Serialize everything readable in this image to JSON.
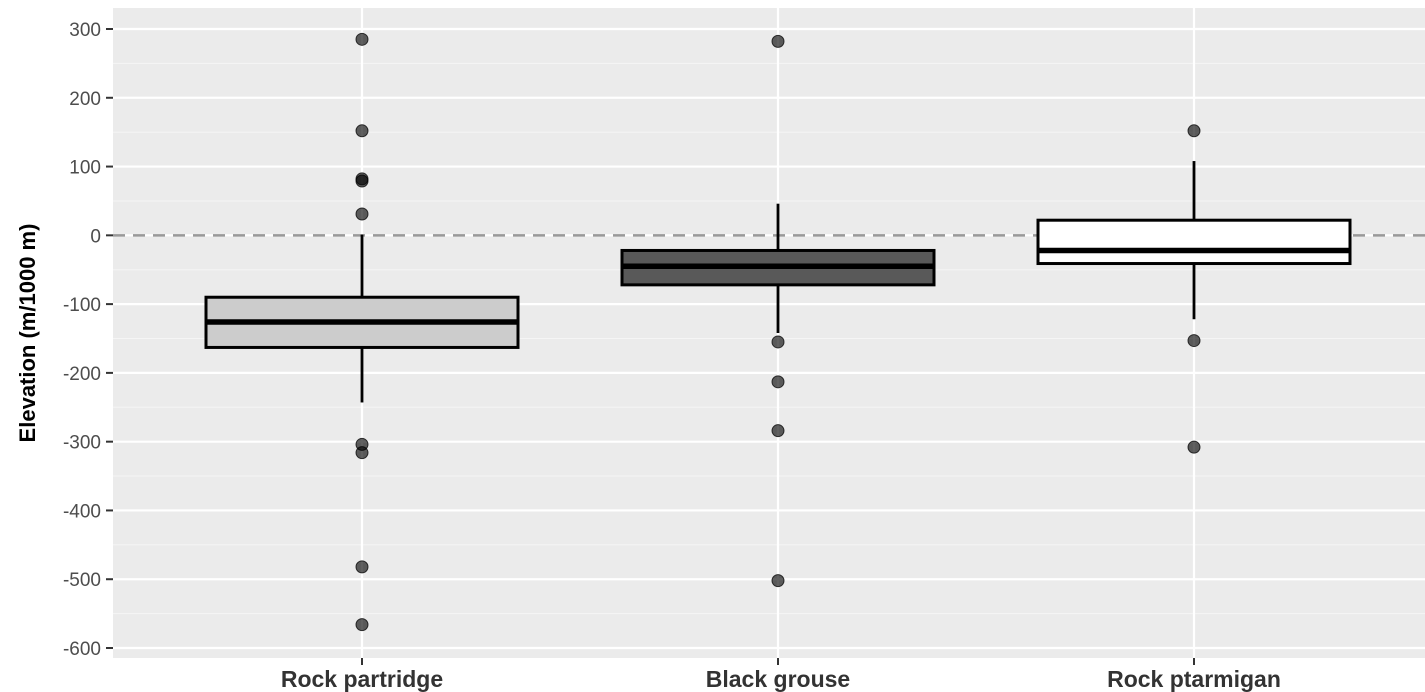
{
  "chart_data": {
    "type": "boxplot",
    "ylabel": "Elevation (m/1000 m)",
    "xlabel": "",
    "ylim": [
      -600,
      300
    ],
    "yticks": [
      300,
      200,
      100,
      0,
      -100,
      -200,
      -300,
      -400,
      -500,
      -600
    ],
    "ytick_labels": [
      "300",
      "200",
      "100",
      "0",
      "-100",
      "-200",
      "-300",
      "-400",
      "-500",
      "-600"
    ],
    "reference_line": {
      "y": 0,
      "style": "dashed",
      "color": "#999999"
    },
    "grid": true,
    "panel_background": "#ebebeb",
    "categories": [
      "Rock partridge",
      "Black grouse",
      "Rock ptarmigan"
    ],
    "boxes": [
      {
        "category": "Rock partridge",
        "fill": "#cccccc",
        "whisker_low": -243,
        "q1": -163,
        "median": -126,
        "q3": -90,
        "whisker_high": 1,
        "outliers": [
          285,
          152,
          82,
          79,
          31,
          -304,
          -316,
          -482,
          -566
        ]
      },
      {
        "category": "Black grouse",
        "fill": "#595959",
        "whisker_low": -142,
        "q1": -72,
        "median": -45,
        "q3": -22,
        "whisker_high": 46,
        "outliers": [
          282,
          -155,
          -213,
          -284,
          -502
        ]
      },
      {
        "category": "Rock ptarmigan",
        "fill": "#ffffff",
        "whisker_low": -122,
        "q1": -41,
        "median": -22,
        "q3": 22,
        "whisker_high": 108,
        "outliers": [
          152,
          -153,
          -308
        ]
      }
    ]
  }
}
